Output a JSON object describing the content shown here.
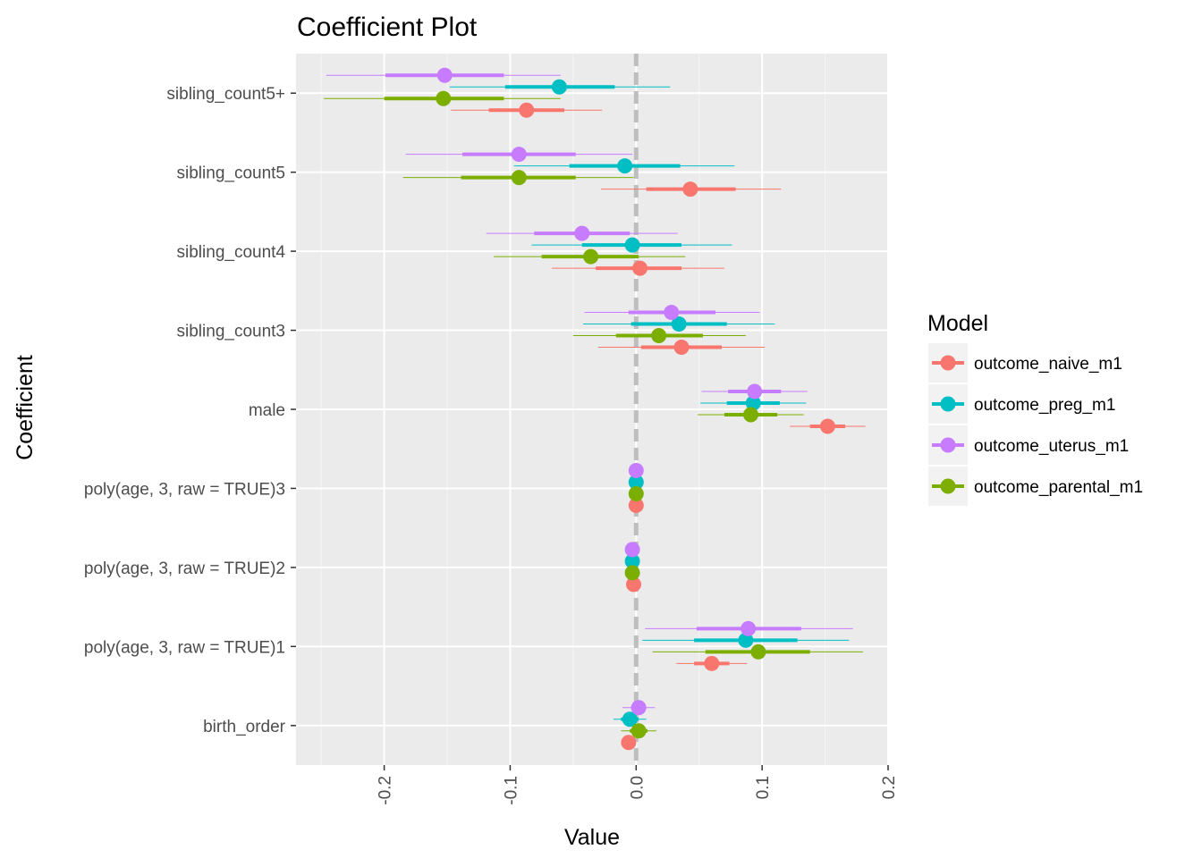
{
  "chart_data": {
    "type": "scatter",
    "title": "Coefficient Plot",
    "xlabel": "Value",
    "ylabel": "Coefficient",
    "xlim": [
      -0.27,
      0.2
    ],
    "x_ticks": [
      -0.2,
      -0.1,
      0.0,
      0.1,
      0.2
    ],
    "x_tick_labels": [
      "-0.2",
      "-0.1",
      "0.0",
      "0.1",
      "0.2"
    ],
    "grid": true,
    "reference_line": 0,
    "categories": [
      "sibling_count5+",
      "sibling_count5",
      "sibling_count4",
      "sibling_count3",
      "male",
      "poly(age, 3, raw = TRUE)3",
      "poly(age, 3, raw = TRUE)2",
      "poly(age, 3, raw = TRUE)1",
      "birth_order"
    ],
    "legend": {
      "title": "Model",
      "position": "right",
      "entries": [
        "outcome_naive_m1",
        "outcome_preg_m1",
        "outcome_uterus_m1",
        "outcome_parental_m1"
      ]
    },
    "series": [
      {
        "name": "outcome_naive_m1",
        "color": "#F8766D",
        "points": [
          {
            "coef": "sibling_count5+",
            "est": -0.087,
            "inner": [
              -0.117,
              -0.057
            ],
            "outer": [
              -0.147,
              -0.027
            ]
          },
          {
            "coef": "sibling_count5",
            "est": 0.043,
            "inner": [
              0.008,
              0.079
            ],
            "outer": [
              -0.028,
              0.115
            ]
          },
          {
            "coef": "sibling_count4",
            "est": 0.003,
            "inner": [
              -0.032,
              0.036
            ],
            "outer": [
              -0.067,
              0.07
            ]
          },
          {
            "coef": "sibling_count3",
            "est": 0.036,
            "inner": [
              0.004,
              0.068
            ],
            "outer": [
              -0.03,
              0.102
            ]
          },
          {
            "coef": "male",
            "est": 0.152,
            "inner": [
              0.138,
              0.166
            ],
            "outer": [
              0.122,
              0.182
            ]
          },
          {
            "coef": "poly(age, 3, raw = TRUE)3",
            "est": 0.0,
            "inner": [
              -0.001,
              0.001
            ],
            "outer": [
              -0.002,
              0.002
            ]
          },
          {
            "coef": "poly(age, 3, raw = TRUE)2",
            "est": -0.002,
            "inner": [
              -0.003,
              -0.001
            ],
            "outer": [
              -0.004,
              0.0
            ]
          },
          {
            "coef": "poly(age, 3, raw = TRUE)1",
            "est": 0.06,
            "inner": [
              0.046,
              0.074
            ],
            "outer": [
              0.032,
              0.088
            ]
          },
          {
            "coef": "birth_order",
            "est": -0.006,
            "inner": [
              -0.009,
              -0.003
            ],
            "outer": [
              -0.012,
              0.0
            ]
          }
        ]
      },
      {
        "name": "outcome_preg_m1",
        "color": "#00BFC4",
        "points": [
          {
            "coef": "sibling_count5+",
            "est": -0.061,
            "inner": [
              -0.104,
              -0.017
            ],
            "outer": [
              -0.148,
              0.027
            ]
          },
          {
            "coef": "sibling_count5",
            "est": -0.009,
            "inner": [
              -0.053,
              0.035
            ],
            "outer": [
              -0.097,
              0.078
            ]
          },
          {
            "coef": "sibling_count4",
            "est": -0.003,
            "inner": [
              -0.043,
              0.036
            ],
            "outer": [
              -0.083,
              0.076
            ]
          },
          {
            "coef": "sibling_count3",
            "est": 0.034,
            "inner": [
              -0.004,
              0.072
            ],
            "outer": [
              -0.042,
              0.11
            ]
          },
          {
            "coef": "male",
            "est": 0.093,
            "inner": [
              0.072,
              0.114
            ],
            "outer": [
              0.051,
              0.135
            ]
          },
          {
            "coef": "poly(age, 3, raw = TRUE)3",
            "est": 0.0,
            "inner": [
              -0.001,
              0.001
            ],
            "outer": [
              -0.002,
              0.002
            ]
          },
          {
            "coef": "poly(age, 3, raw = TRUE)2",
            "est": -0.003,
            "inner": [
              -0.004,
              -0.002
            ],
            "outer": [
              -0.005,
              -0.001
            ]
          },
          {
            "coef": "poly(age, 3, raw = TRUE)1",
            "est": 0.087,
            "inner": [
              0.046,
              0.128
            ],
            "outer": [
              0.005,
              0.169
            ]
          },
          {
            "coef": "birth_order",
            "est": -0.005,
            "inner": [
              -0.012,
              0.002
            ],
            "outer": [
              -0.018,
              0.008
            ]
          }
        ]
      },
      {
        "name": "outcome_uterus_m1",
        "color": "#C77CFF",
        "points": [
          {
            "coef": "sibling_count5+",
            "est": -0.152,
            "inner": [
              -0.199,
              -0.105
            ],
            "outer": [
              -0.246,
              -0.06
            ]
          },
          {
            "coef": "sibling_count5",
            "est": -0.093,
            "inner": [
              -0.138,
              -0.048
            ],
            "outer": [
              -0.183,
              -0.003
            ]
          },
          {
            "coef": "sibling_count4",
            "est": -0.043,
            "inner": [
              -0.081,
              -0.005
            ],
            "outer": [
              -0.119,
              0.033
            ]
          },
          {
            "coef": "sibling_count3",
            "est": 0.028,
            "inner": [
              -0.006,
              0.063
            ],
            "outer": [
              -0.041,
              0.098
            ]
          },
          {
            "coef": "male",
            "est": 0.094,
            "inner": [
              0.073,
              0.115
            ],
            "outer": [
              0.052,
              0.136
            ]
          },
          {
            "coef": "poly(age, 3, raw = TRUE)3",
            "est": 0.0,
            "inner": [
              -0.001,
              0.001
            ],
            "outer": [
              -0.002,
              0.002
            ]
          },
          {
            "coef": "poly(age, 3, raw = TRUE)2",
            "est": -0.003,
            "inner": [
              -0.004,
              -0.002
            ],
            "outer": [
              -0.005,
              -0.001
            ]
          },
          {
            "coef": "poly(age, 3, raw = TRUE)1",
            "est": 0.089,
            "inner": [
              0.048,
              0.131
            ],
            "outer": [
              0.007,
              0.172
            ]
          },
          {
            "coef": "birth_order",
            "est": 0.002,
            "inner": [
              -0.004,
              0.008
            ],
            "outer": [
              -0.011,
              0.015
            ]
          }
        ]
      },
      {
        "name": "outcome_parental_m1",
        "color": "#7CAE00",
        "points": [
          {
            "coef": "sibling_count5+",
            "est": -0.153,
            "inner": [
              -0.2,
              -0.105
            ],
            "outer": [
              -0.248,
              -0.06
            ]
          },
          {
            "coef": "sibling_count5",
            "est": -0.093,
            "inner": [
              -0.139,
              -0.048
            ],
            "outer": [
              -0.185,
              -0.002
            ]
          },
          {
            "coef": "sibling_count4",
            "est": -0.036,
            "inner": [
              -0.075,
              0.002
            ],
            "outer": [
              -0.113,
              0.039
            ]
          },
          {
            "coef": "sibling_count3",
            "est": 0.018,
            "inner": [
              -0.016,
              0.053
            ],
            "outer": [
              -0.05,
              0.087
            ]
          },
          {
            "coef": "male",
            "est": 0.091,
            "inner": [
              0.07,
              0.112
            ],
            "outer": [
              0.049,
              0.133
            ]
          },
          {
            "coef": "poly(age, 3, raw = TRUE)3",
            "est": 0.0,
            "inner": [
              -0.001,
              0.001
            ],
            "outer": [
              -0.002,
              0.002
            ]
          },
          {
            "coef": "poly(age, 3, raw = TRUE)2",
            "est": -0.003,
            "inner": [
              -0.004,
              -0.002
            ],
            "outer": [
              -0.005,
              -0.001
            ]
          },
          {
            "coef": "poly(age, 3, raw = TRUE)1",
            "est": 0.097,
            "inner": [
              0.055,
              0.138
            ],
            "outer": [
              0.013,
              0.18
            ]
          },
          {
            "coef": "birth_order",
            "est": 0.002,
            "inner": [
              -0.005,
              0.009
            ],
            "outer": [
              -0.012,
              0.016
            ]
          }
        ]
      }
    ]
  }
}
